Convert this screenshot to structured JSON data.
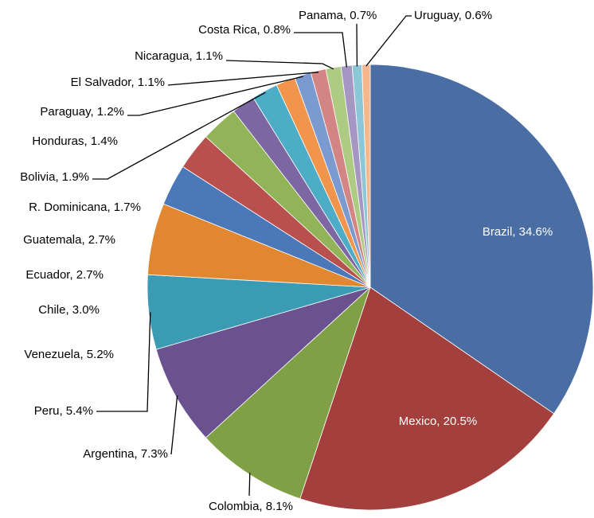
{
  "chart_data": {
    "type": "pie",
    "values": [
      34.6,
      20.5,
      8.1,
      7.3,
      5.4,
      5.2,
      3.0,
      2.7,
      2.7,
      1.7,
      1.9,
      1.4,
      1.2,
      1.1,
      1.1,
      0.8,
      0.7,
      0.6
    ],
    "value_labels": [
      "Brazil, 34.6%",
      "Mexico, 20.5%",
      "Colombia, 8.1%",
      "Argentina, 7.3%",
      "Peru, 5.4%",
      "Venezuela, 5.2%",
      "Chile, 3.0%",
      "Ecuador, 2.7%",
      "Guatemala, 2.7%",
      "R. Dominicana, 1.7%",
      "Bolivia, 1.9%",
      "Honduras, 1.4%",
      "Paraguay, 1.2%",
      "El Salvador, 1.1%",
      "Nicaragua, 1.1%",
      "Costa Rica, 0.8%",
      "Panama, 0.7%",
      "Uruguay, 0.6%"
    ],
    "colors": [
      "#4a6ea3",
      "#a3403d",
      "#80a046",
      "#6a5290",
      "#3b9bb5",
      "#e18730",
      "#4a78b8",
      "#b8504d",
      "#92b458",
      "#7d67a3",
      "#4eadc6",
      "#f0954b",
      "#7a9ad0",
      "#d38583",
      "#aecb84",
      "#a696c4",
      "#8cc7d8",
      "#f6b78c"
    ]
  }
}
